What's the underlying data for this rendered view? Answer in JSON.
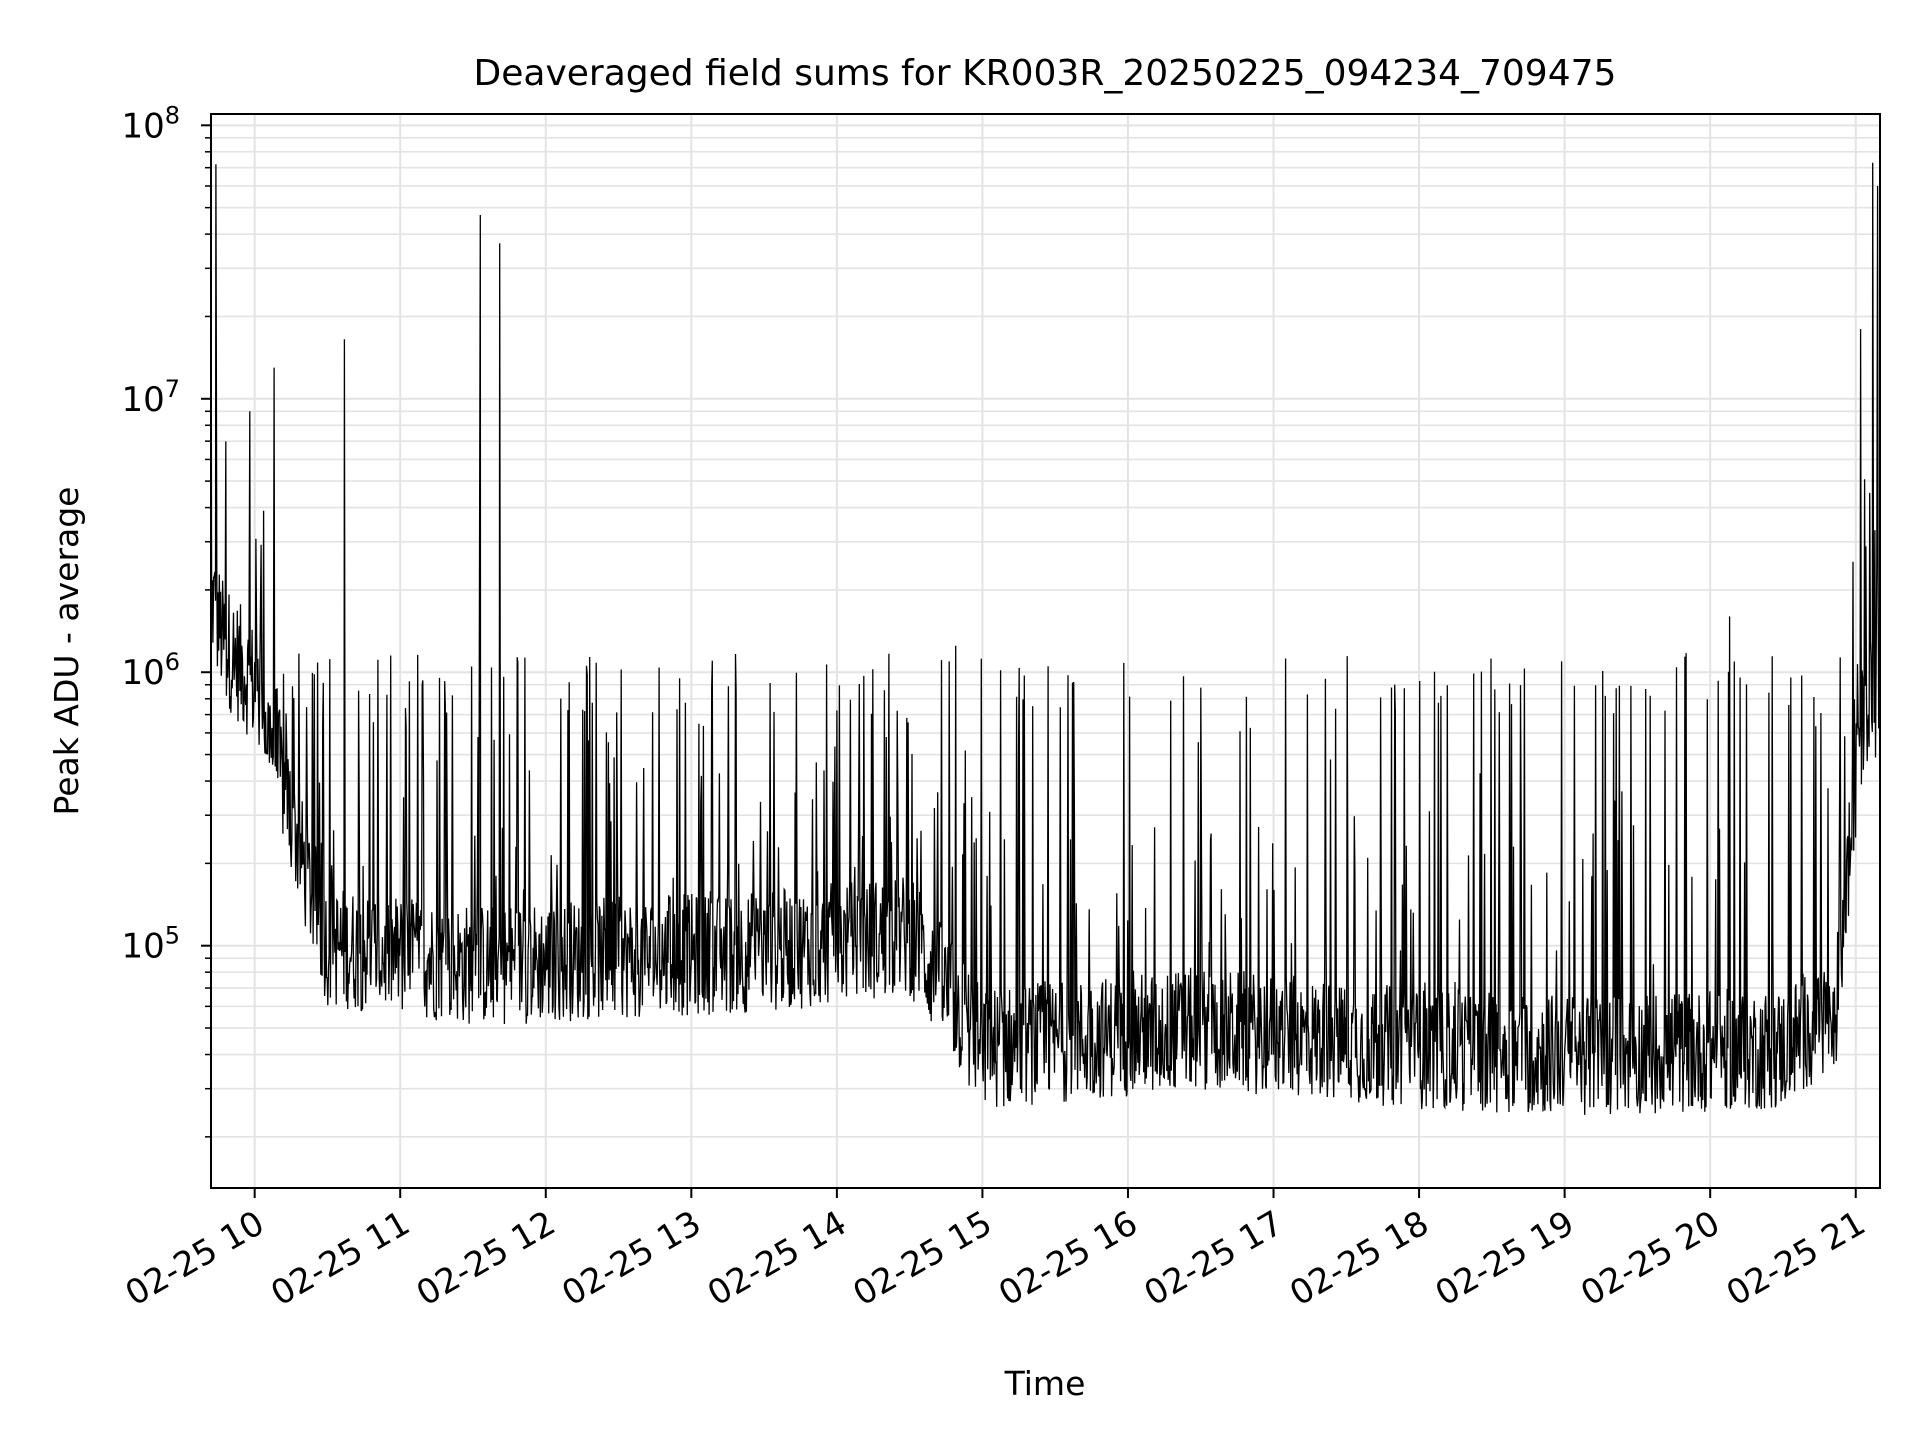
{
  "chart_data": {
    "type": "line",
    "title": "Deaveraged field sums for KR003R_20250225_094234_709475",
    "xlabel": "Time",
    "ylabel": "Peak ADU - average",
    "yscale": "log",
    "ylim": [
      13000,
      110000000
    ],
    "xlim": [
      "2025-02-25 09:42",
      "2025-02-25 21:10"
    ],
    "grid": true,
    "x_ticks": [
      "02-25 10",
      "02-25 11",
      "02-25 12",
      "02-25 13",
      "02-25 14",
      "02-25 15",
      "02-25 16",
      "02-25 17",
      "02-25 18",
      "02-25 19",
      "02-25 20",
      "02-25 21"
    ],
    "y_ticks": [
      {
        "base": "10",
        "exp": "5",
        "value": 100000
      },
      {
        "base": "10",
        "exp": "6",
        "value": 1000000
      },
      {
        "base": "10",
        "exp": "7",
        "value": 10000000
      },
      {
        "base": "10",
        "exp": "8",
        "value": 100000000
      }
    ],
    "series": [
      {
        "color": "#000000",
        "baseline_profile": [
          {
            "x": "2025-02-25 09:43",
            "y": 1800000
          },
          {
            "x": "2025-02-25 09:47",
            "y": 1300000
          },
          {
            "x": "2025-02-25 10:00",
            "y": 900000
          },
          {
            "x": "2025-02-25 10:10",
            "y": 450000
          },
          {
            "x": "2025-02-25 10:20",
            "y": 200000
          },
          {
            "x": "2025-02-25 10:30",
            "y": 100000
          },
          {
            "x": "2025-02-25 11:30",
            "y": 85000
          },
          {
            "x": "2025-02-25 12:30",
            "y": 90000
          },
          {
            "x": "2025-02-25 13:30",
            "y": 95000
          },
          {
            "x": "2025-02-25 14:30",
            "y": 110000
          },
          {
            "x": "2025-02-25 15:00",
            "y": 42000
          },
          {
            "x": "2025-02-25 16:30",
            "y": 50000
          },
          {
            "x": "2025-02-25 18:00",
            "y": 42000
          },
          {
            "x": "2025-02-25 19:00",
            "y": 40000
          },
          {
            "x": "2025-02-25 20:30",
            "y": 42000
          },
          {
            "x": "2025-02-25 20:52",
            "y": 60000
          },
          {
            "x": "2025-02-25 20:57",
            "y": 200000
          },
          {
            "x": "2025-02-25 21:02",
            "y": 600000
          },
          {
            "x": "2025-02-25 21:06",
            "y": 900000
          },
          {
            "x": "2025-02-25 21:10",
            "y": 700000
          }
        ],
        "peaks": [
          {
            "x": "2025-02-25 09:42",
            "y": 60000000
          },
          {
            "x": "2025-02-25 09:44",
            "y": 72000000
          },
          {
            "x": "2025-02-25 09:58",
            "y": 9000000
          },
          {
            "x": "2025-02-25 10:08",
            "y": 13000000
          },
          {
            "x": "2025-02-25 10:37",
            "y": 16500000
          },
          {
            "x": "2025-02-25 11:33",
            "y": 47000000
          },
          {
            "x": "2025-02-25 11:41",
            "y": 37000000
          },
          {
            "x": "2025-02-25 14:49",
            "y": 1250000
          },
          {
            "x": "2025-02-25 20:08",
            "y": 1600000
          },
          {
            "x": "2025-02-25 21:02",
            "y": 18000000
          },
          {
            "x": "2025-02-25 21:07",
            "y": 73000000
          },
          {
            "x": "2025-02-25 21:09",
            "y": 60000000
          }
        ]
      }
    ]
  }
}
